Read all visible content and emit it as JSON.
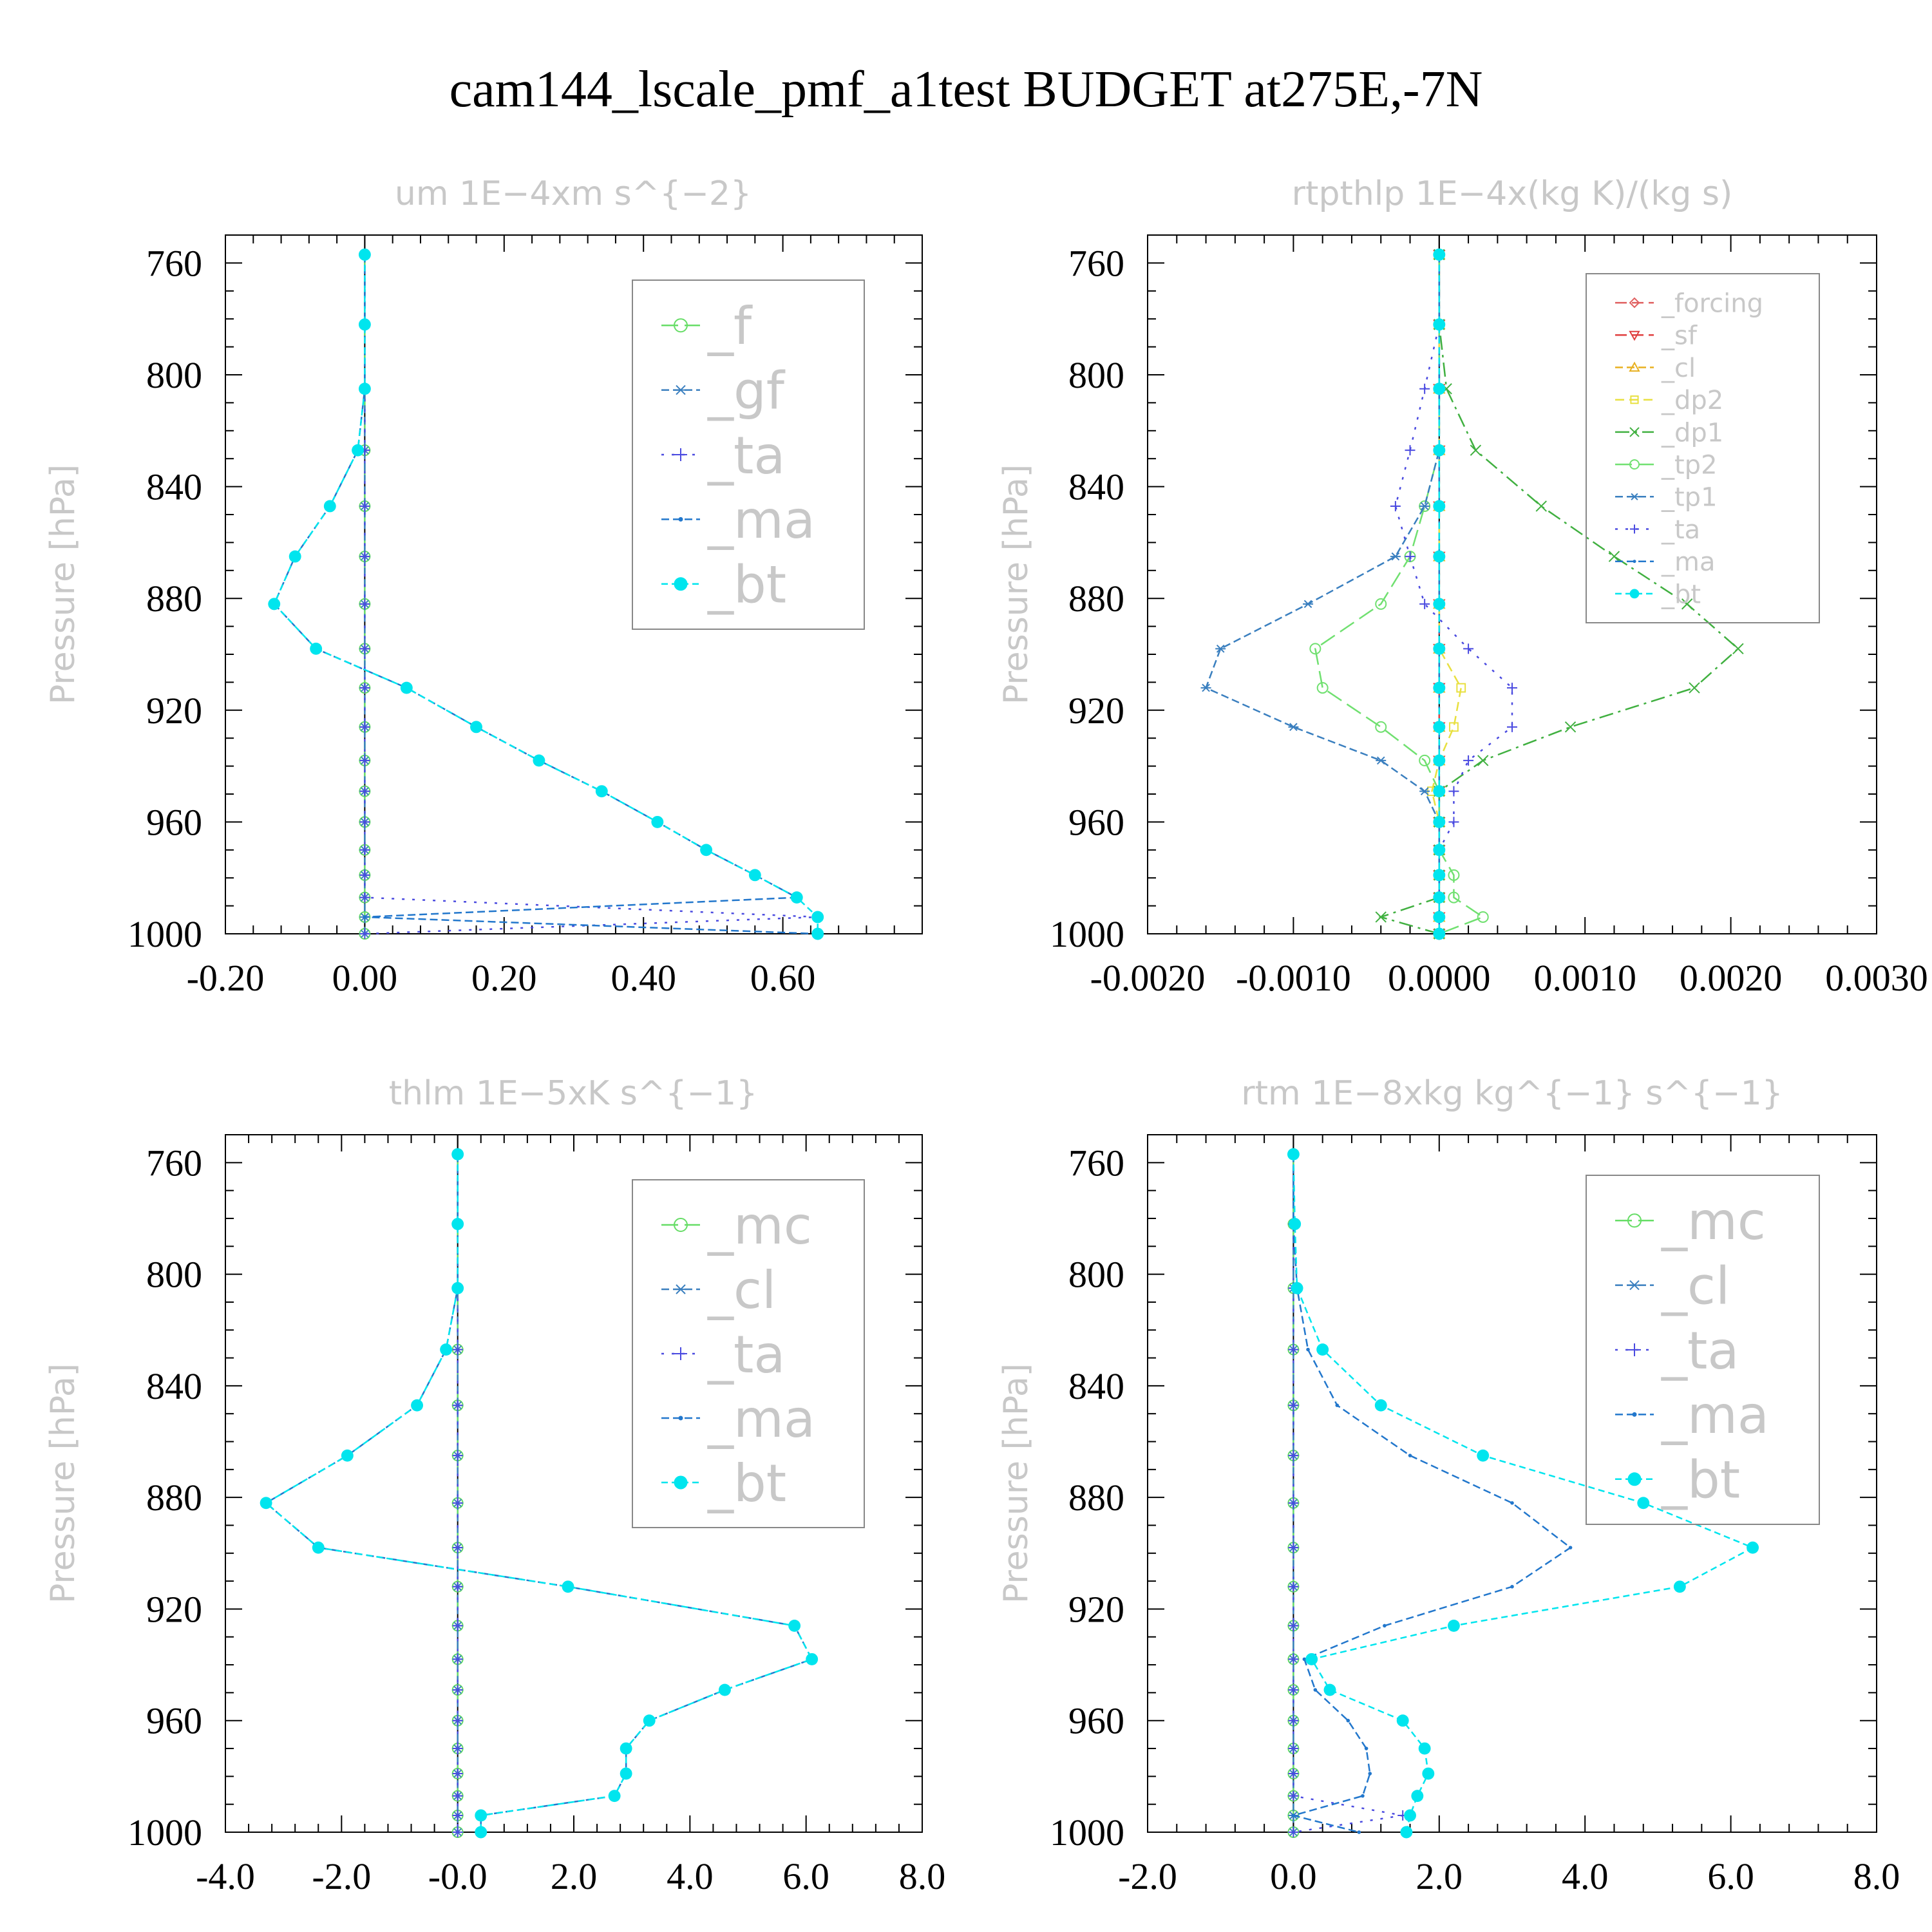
{
  "figure": {
    "title": "cam144_lscale_pmf_a1test  BUDGET at275E,-7N"
  },
  "chart_data": [
    {
      "type": "line",
      "title": "um   1E−4xm s^{−2}",
      "ylabel": "Pressure [hPa]",
      "xlim": [
        -0.2,
        0.8
      ],
      "ylim": [
        1000,
        750
      ],
      "xticks": [
        -0.2,
        0,
        0.2,
        0.4,
        0.6
      ],
      "xtick_labels": [
        "-0.20",
        "0.00",
        "0.20",
        "0.40",
        "0.60"
      ],
      "yticks": [
        760,
        800,
        840,
        880,
        920,
        960,
        1000
      ],
      "ytick_labels": [
        "760",
        "800",
        "840",
        "880",
        "920",
        "960",
        "1000"
      ],
      "legend_position": "upper-right",
      "legend_font": 80,
      "levels": [
        757,
        782,
        805,
        827,
        847,
        865,
        882,
        898,
        912,
        926,
        938,
        949,
        960,
        970,
        979,
        987,
        994,
        1000
      ],
      "series": [
        {
          "name": "_f",
          "color": "#66dd66",
          "marker": "circle",
          "values": [
            0,
            0,
            0,
            0,
            0,
            0,
            0,
            0,
            0,
            0,
            0,
            0,
            0,
            0,
            0,
            0,
            0,
            0
          ]
        },
        {
          "name": "_gf",
          "color": "#3a7fbf",
          "marker": "asterisk",
          "values": [
            0,
            0,
            0,
            0,
            0,
            0,
            0,
            0,
            0,
            0,
            0,
            0,
            0,
            0,
            0,
            0,
            0,
            0
          ]
        },
        {
          "name": "_ta",
          "color": "#4a4ae0",
          "marker": "plus",
          "values": [
            0,
            0,
            0,
            0,
            0,
            0,
            0,
            0,
            0,
            0,
            0,
            0,
            0,
            0,
            0,
            0,
            0.65,
            0
          ]
        },
        {
          "name": "_ma",
          "color": "#2277cc",
          "marker": "dot",
          "values": [
            0,
            0,
            0,
            -0.01,
            -0.05,
            -0.1,
            -0.13,
            -0.07,
            0.06,
            0.16,
            0.25,
            0.34,
            0.42,
            0.49,
            0.56,
            0.62,
            0,
            0.65
          ]
        },
        {
          "name": "_bt",
          "color": "#00e5ee",
          "marker": "filled",
          "values": [
            0,
            0,
            0,
            -0.01,
            -0.05,
            -0.1,
            -0.13,
            -0.07,
            0.06,
            0.16,
            0.25,
            0.34,
            0.42,
            0.49,
            0.56,
            0.62,
            0.65,
            0.65
          ]
        }
      ]
    },
    {
      "type": "line",
      "title": "rtpthlp   1E−4x(kg K)/(kg s)",
      "ylabel": "Pressure [hPa]",
      "xlim": [
        -0.002,
        0.003
      ],
      "ylim": [
        1000,
        750
      ],
      "xticks": [
        -0.002,
        -0.001,
        0,
        0.001,
        0.002,
        0.003
      ],
      "xtick_labels": [
        "-0.0020",
        "-0.0010",
        "0.0000",
        "0.0010",
        "0.0020",
        "0.0030"
      ],
      "yticks": [
        760,
        800,
        840,
        880,
        920,
        960,
        1000
      ],
      "ytick_labels": [
        "760",
        "800",
        "840",
        "880",
        "920",
        "960",
        "1000"
      ],
      "legend_position": "upper-right",
      "legend_font": 40,
      "levels": [
        757,
        782,
        805,
        827,
        847,
        865,
        882,
        898,
        912,
        926,
        938,
        949,
        960,
        970,
        979,
        987,
        994,
        1000
      ],
      "series": [
        {
          "name": "_forcing",
          "color": "#e06060",
          "marker": "diamond",
          "values": [
            0,
            0,
            0,
            0,
            0,
            0,
            0,
            0,
            0,
            0,
            0,
            0,
            0,
            0,
            0,
            0,
            0,
            0
          ]
        },
        {
          "name": "_sf",
          "color": "#e04040",
          "marker": "tri-down",
          "values": [
            0,
            0,
            0,
            0,
            0,
            0,
            0,
            0,
            0,
            0,
            0,
            0,
            0,
            0,
            0,
            0,
            0,
            0
          ]
        },
        {
          "name": "_cl",
          "color": "#e8b020",
          "marker": "tri-up",
          "values": [
            0,
            0,
            0,
            0,
            0,
            0,
            0,
            0,
            0,
            0,
            0,
            0,
            0,
            0,
            0,
            0,
            0,
            0
          ]
        },
        {
          "name": "_dp2",
          "color": "#e8e040",
          "marker": "square",
          "values": [
            0,
            0,
            0,
            0,
            0,
            0,
            0,
            0,
            0.00015,
            0.0001,
            0,
            -5e-05,
            0,
            0,
            0,
            0,
            0,
            0
          ]
        },
        {
          "name": "_dp1",
          "color": "#40b040",
          "marker": "x",
          "values": [
            0,
            0,
            5e-05,
            0.00025,
            0.0007,
            0.0012,
            0.0017,
            0.00205,
            0.00175,
            0.0009,
            0.0003,
            0,
            0,
            0,
            0,
            0,
            -0.0004,
            0
          ]
        },
        {
          "name": "_tp2",
          "color": "#70e070",
          "marker": "circle",
          "values": [
            0,
            0,
            0,
            0,
            -0.0001,
            -0.0002,
            -0.0004,
            -0.00085,
            -0.0008,
            -0.0004,
            -0.0001,
            0,
            0,
            0,
            0.0001,
            0.0001,
            0.0003,
            0
          ]
        },
        {
          "name": "_tp1",
          "color": "#3a7fbf",
          "marker": "asterisk",
          "values": [
            0,
            0,
            0,
            0,
            -0.0001,
            -0.0003,
            -0.0009,
            -0.0015,
            -0.0016,
            -0.001,
            -0.0004,
            -0.0001,
            0,
            0,
            0,
            0,
            0,
            0
          ]
        },
        {
          "name": "_ta",
          "color": "#4a4ae0",
          "marker": "plus",
          "values": [
            0,
            0,
            -0.0001,
            -0.0002,
            -0.0003,
            -0.0002,
            -0.0001,
            0.0002,
            0.0005,
            0.0005,
            0.0002,
            0.0001,
            0.0001,
            0,
            0,
            0,
            0,
            0
          ]
        },
        {
          "name": "_ma",
          "color": "#2277cc",
          "marker": "dot",
          "values": [
            0,
            0,
            0,
            0,
            0,
            0,
            0,
            0,
            0,
            0,
            0,
            0,
            0,
            0,
            0,
            0,
            0,
            0
          ]
        },
        {
          "name": "_bt",
          "color": "#00e5ee",
          "marker": "filled",
          "values": [
            0,
            0,
            0,
            0,
            0,
            0,
            0,
            0,
            0,
            0,
            0,
            0,
            0,
            0,
            0,
            0,
            0,
            0
          ]
        }
      ]
    },
    {
      "type": "line",
      "title": "thlm   1E−5xK s^{−1}",
      "ylabel": "Pressure [hPa]",
      "xlim": [
        -4,
        8
      ],
      "ylim": [
        1000,
        750
      ],
      "xticks": [
        -4,
        -2,
        0,
        2,
        4,
        6,
        8
      ],
      "xtick_labels": [
        "-4.0",
        "-2.0",
        "-0.0",
        "2.0",
        "4.0",
        "6.0",
        "8.0"
      ],
      "yticks": [
        760,
        800,
        840,
        880,
        920,
        960,
        1000
      ],
      "ytick_labels": [
        "760",
        "800",
        "840",
        "880",
        "920",
        "960",
        "1000"
      ],
      "legend_position": "upper-right",
      "legend_font": 80,
      "levels": [
        757,
        782,
        805,
        827,
        847,
        865,
        882,
        898,
        912,
        926,
        938,
        949,
        960,
        970,
        979,
        987,
        994,
        1000
      ],
      "series": [
        {
          "name": "_mc",
          "color": "#66dd66",
          "marker": "circle",
          "values": [
            0,
            0,
            0,
            0,
            0,
            0,
            0,
            0,
            0,
            0,
            0,
            0,
            0,
            0,
            0,
            0,
            0,
            0
          ]
        },
        {
          "name": "_cl",
          "color": "#3a7fbf",
          "marker": "asterisk",
          "values": [
            0,
            0,
            0,
            0,
            0,
            0,
            0,
            0,
            0,
            0,
            0,
            0,
            0,
            0,
            0,
            0,
            0,
            0
          ]
        },
        {
          "name": "_ta",
          "color": "#4a4ae0",
          "marker": "plus",
          "values": [
            0,
            0,
            0,
            0,
            0,
            0,
            0,
            0,
            0,
            0,
            0,
            0,
            0,
            0,
            0,
            0,
            0,
            0
          ]
        },
        {
          "name": "_ma",
          "color": "#2277cc",
          "marker": "dot",
          "values": [
            0,
            0,
            0,
            -0.2,
            -0.7,
            -1.9,
            -3.3,
            -2.4,
            1.9,
            5.8,
            6.1,
            4.6,
            3.3,
            2.9,
            2.9,
            2.7,
            0.4,
            0.4
          ]
        },
        {
          "name": "_bt",
          "color": "#00e5ee",
          "marker": "filled",
          "values": [
            0,
            0,
            0,
            -0.2,
            -0.7,
            -1.9,
            -3.3,
            -2.4,
            1.9,
            5.8,
            6.1,
            4.6,
            3.3,
            2.9,
            2.9,
            2.7,
            0.4,
            0.4
          ]
        }
      ]
    },
    {
      "type": "line",
      "title": "rtm   1E−8xkg kg^{−1} s^{−1}",
      "ylabel": "Pressure [hPa]",
      "xlim": [
        -2,
        8
      ],
      "ylim": [
        1000,
        750
      ],
      "xticks": [
        -2,
        0,
        2,
        4,
        6,
        8
      ],
      "xtick_labels": [
        "-2.0",
        "0.0",
        "2.0",
        "4.0",
        "6.0",
        "8.0"
      ],
      "yticks": [
        760,
        800,
        840,
        880,
        920,
        960,
        1000
      ],
      "ytick_labels": [
        "760",
        "800",
        "840",
        "880",
        "920",
        "960",
        "1000"
      ],
      "legend_position": "upper-right",
      "legend_font": 80,
      "levels": [
        757,
        782,
        805,
        827,
        847,
        865,
        882,
        898,
        912,
        926,
        938,
        949,
        960,
        970,
        979,
        987,
        994,
        1000
      ],
      "series": [
        {
          "name": "_mc",
          "color": "#66dd66",
          "marker": "circle",
          "values": [
            0,
            0,
            0,
            0,
            0,
            0,
            0,
            0,
            0,
            0,
            0,
            0,
            0,
            0,
            0,
            0,
            0,
            0
          ]
        },
        {
          "name": "_cl",
          "color": "#3a7fbf",
          "marker": "asterisk",
          "values": [
            0,
            0,
            0,
            0,
            0,
            0,
            0,
            0,
            0,
            0,
            0,
            0,
            0,
            0,
            0,
            0,
            0,
            0
          ]
        },
        {
          "name": "_ta",
          "color": "#4a4ae0",
          "marker": "plus",
          "values": [
            0,
            0,
            0,
            0,
            0,
            0,
            0,
            0,
            0,
            0,
            0,
            0,
            0,
            0,
            0,
            0,
            1.5,
            0
          ]
        },
        {
          "name": "_ma",
          "color": "#2277cc",
          "marker": "dot",
          "values": [
            0,
            0,
            0.05,
            0.2,
            0.6,
            1.6,
            3.0,
            3.8,
            3.0,
            1.25,
            0.15,
            0.3,
            0.75,
            1.0,
            1.05,
            0.95,
            0,
            0.9
          ]
        },
        {
          "name": "_bt",
          "color": "#00e5ee",
          "marker": "filled",
          "values": [
            0,
            0.02,
            0.05,
            0.4,
            1.2,
            2.6,
            4.8,
            6.3,
            5.3,
            2.2,
            0.25,
            0.5,
            1.5,
            1.8,
            1.85,
            1.7,
            1.6,
            1.55
          ]
        }
      ]
    }
  ]
}
